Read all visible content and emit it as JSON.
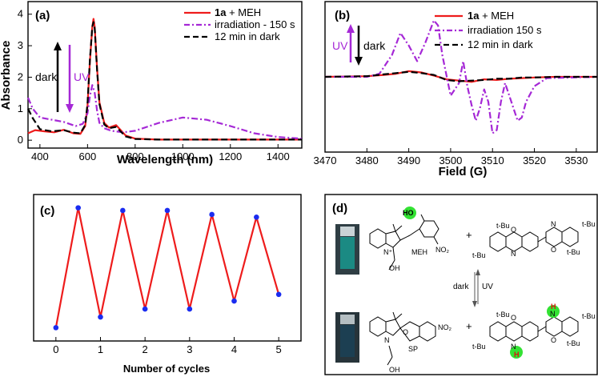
{
  "panels": {
    "a": "(a)",
    "b": "(b)",
    "c": "(c)",
    "d": "(d)"
  },
  "colors": {
    "red": "#ee1c1c",
    "purple": "#a528d6",
    "black": "#000000",
    "blue": "#1a2cf0",
    "green": "#33e233"
  },
  "chart_data": [
    {
      "type": "line",
      "panel": "a",
      "xlabel": "Wavelength (nm)",
      "ylabel": "Absorbance",
      "xlim": [
        350,
        1500
      ],
      "ylim": [
        -0.25,
        4.4
      ],
      "xticks": [
        400,
        600,
        800,
        1000,
        1200,
        1400
      ],
      "yticks": [
        0,
        1,
        2,
        3,
        4
      ],
      "legend": {
        "entries": [
          {
            "bold": "1a",
            "text": " + MEH",
            "style": "solid",
            "color": "#ee1c1c"
          },
          {
            "bold": "",
            "text": "irradiation - 150 s",
            "style": "dashdot",
            "color": "#a528d6"
          },
          {
            "bold": "",
            "text": "12 min in dark",
            "style": "dashed",
            "color": "#000000"
          }
        ]
      },
      "annotations": {
        "dark": "dark",
        "uv": "UV"
      },
      "series": [
        {
          "name": "1a + MEH",
          "x": [
            350,
            380,
            420,
            460,
            500,
            540,
            570,
            590,
            600,
            610,
            620,
            625,
            630,
            640,
            650,
            670,
            690,
            720,
            760,
            800,
            900,
            1000,
            1200,
            1500
          ],
          "y": [
            0.22,
            0.32,
            0.28,
            0.25,
            0.33,
            0.22,
            0.2,
            0.45,
            1.1,
            2.5,
            3.6,
            3.85,
            3.6,
            2.3,
            1.2,
            0.55,
            0.4,
            0.48,
            0.15,
            0.05,
            0.02,
            0.02,
            0.02,
            0.02
          ]
        },
        {
          "name": "irradiation - 150 s",
          "x": [
            350,
            370,
            400,
            450,
            500,
            550,
            580,
            600,
            610,
            620,
            630,
            640,
            650,
            670,
            700,
            750,
            800,
            900,
            1000,
            1100,
            1200,
            1300,
            1400,
            1500
          ],
          "y": [
            1.35,
            1.0,
            0.72,
            0.65,
            0.58,
            0.45,
            0.52,
            0.85,
            1.4,
            1.75,
            1.5,
            0.95,
            0.55,
            0.38,
            0.3,
            0.25,
            0.3,
            0.55,
            0.72,
            0.65,
            0.45,
            0.22,
            0.1,
            0.05
          ]
        },
        {
          "name": "12 min in dark",
          "x": [
            350,
            370,
            400,
            450,
            500,
            540,
            570,
            590,
            600,
            610,
            620,
            625,
            630,
            640,
            650,
            670,
            690,
            720,
            760,
            800,
            900,
            1000,
            1200,
            1500
          ],
          "y": [
            1.0,
            0.7,
            0.35,
            0.28,
            0.32,
            0.24,
            0.22,
            0.48,
            1.15,
            2.55,
            3.6,
            3.75,
            3.55,
            2.25,
            1.15,
            0.5,
            0.38,
            0.42,
            0.12,
            0.04,
            0.02,
            0.02,
            0.02,
            0.02
          ]
        }
      ]
    },
    {
      "type": "line",
      "panel": "b",
      "xlabel": "Field (G)",
      "xlim": [
        3470,
        3535
      ],
      "ylim": [
        -1.2,
        1.2
      ],
      "xticks": [
        3470,
        3480,
        3490,
        3500,
        3510,
        3520,
        3530
      ],
      "legend": {
        "entries": [
          {
            "bold": "1a",
            "text": " + MEH",
            "style": "solid",
            "color": "#ee1c1c"
          },
          {
            "bold": "",
            "text": "irradiation 150 s",
            "style": "dashdot",
            "color": "#a528d6"
          },
          {
            "bold": "",
            "text": "12 min in dark",
            "style": "dashed",
            "color": "#000000"
          }
        ]
      },
      "annotations": {
        "dark": "dark",
        "uv": "UV"
      },
      "series": [
        {
          "name": "1a + MEH",
          "x": [
            3470,
            3480,
            3484,
            3487,
            3490,
            3493,
            3496,
            3499,
            3502,
            3505,
            3508,
            3511,
            3514,
            3517,
            3520,
            3525,
            3535
          ],
          "y": [
            0,
            0.01,
            0.03,
            0.05,
            0.09,
            0.07,
            0.02,
            -0.04,
            -0.06,
            -0.08,
            -0.04,
            -0.05,
            -0.03,
            -0.02,
            -0.01,
            0,
            0
          ]
        },
        {
          "name": "irradiation 150 s",
          "x": [
            3470,
            3480,
            3483,
            3486,
            3488,
            3490,
            3492,
            3494,
            3496,
            3497,
            3498,
            3500,
            3502,
            3503,
            3504,
            3505,
            3506,
            3507,
            3508,
            3509,
            3510,
            3511,
            3512,
            3513,
            3514,
            3515,
            3516,
            3517,
            3518,
            3520,
            3523,
            3535
          ],
          "y": [
            0,
            0,
            0.05,
            0.35,
            0.7,
            0.5,
            0.25,
            0.55,
            0.9,
            0.82,
            0.35,
            -0.3,
            -0.1,
            0.25,
            -0.15,
            -0.45,
            -0.7,
            -0.5,
            -0.2,
            -0.4,
            -0.9,
            -0.85,
            -0.4,
            -0.1,
            -0.3,
            -0.5,
            -0.7,
            -0.65,
            -0.4,
            -0.15,
            -0.02,
            0
          ]
        },
        {
          "name": "12 min in dark",
          "x": [
            3470,
            3480,
            3484,
            3487,
            3490,
            3493,
            3496,
            3499,
            3502,
            3505,
            3508,
            3511,
            3514,
            3517,
            3520,
            3525,
            3535
          ],
          "y": [
            0,
            0.01,
            0.04,
            0.06,
            0.08,
            0.06,
            0.03,
            -0.05,
            -0.07,
            -0.06,
            -0.05,
            -0.03,
            -0.03,
            -0.01,
            -0.01,
            0,
            0
          ]
        }
      ]
    },
    {
      "type": "line",
      "panel": "c",
      "xlabel": "Number of cycles",
      "xlim": [
        -0.5,
        5.5
      ],
      "ylim": [
        0,
        1.1
      ],
      "xticks": [
        0,
        1,
        2,
        3,
        4,
        5
      ],
      "series": [
        {
          "name": "switching",
          "x": [
            0,
            0.5,
            1,
            1.5,
            2,
            2.5,
            3,
            3.5,
            4,
            4.5,
            5
          ],
          "y": [
            0.1,
            1.0,
            0.18,
            0.98,
            0.24,
            0.98,
            0.24,
            0.95,
            0.3,
            0.93,
            0.35
          ]
        }
      ]
    }
  ],
  "scheme": {
    "label_meh": "MEH",
    "label_sp": "SP",
    "label_dark": "dark",
    "label_uv": "UV",
    "plus": "+",
    "tbu": "t-Bu",
    "ho": "HO",
    "oh": "OH",
    "no2": "NO₂",
    "n": "N",
    "o": "O",
    "h": "H",
    "nplus": "N⁺"
  }
}
